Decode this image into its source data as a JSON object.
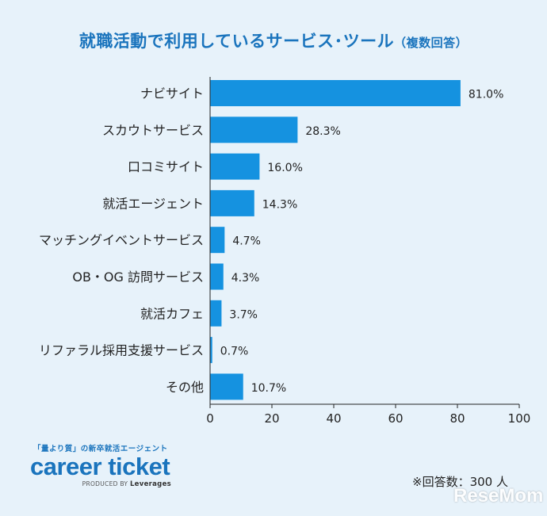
{
  "title": "就職活動で利用しているサービス･ツール",
  "title_sub": "（複数回答）",
  "note": "※回答数：300 人",
  "logo": {
    "tagline": "「量より質」の新卒就活エージェント",
    "brand": "career ticket",
    "produced_prefix": "PRODUCED BY",
    "produced_by": "Leverages"
  },
  "watermark": "ReseMom",
  "colors": {
    "bar": "#1592e0",
    "title": "#1a74bd",
    "background": "#e7f2fa"
  },
  "chart_data": {
    "type": "bar",
    "orientation": "horizontal",
    "categories": [
      "ナビサイト",
      "スカウトサービス",
      "口コミサイト",
      "就活エージェント",
      "マッチングイベントサービス",
      "OB・OG 訪問サービス",
      "就活カフェ",
      "リファラル採用支援サービス",
      "その他"
    ],
    "values": [
      81.0,
      28.3,
      16.0,
      14.3,
      4.7,
      4.3,
      3.7,
      0.7,
      10.7
    ],
    "value_labels": [
      "81.0%",
      "28.3%",
      "16.0%",
      "14.3%",
      "4.7%",
      "4.3%",
      "3.7%",
      "0.7%",
      "10.7%"
    ],
    "xlim": [
      0,
      100
    ],
    "xticks": [
      0,
      20,
      40,
      60,
      80,
      100
    ],
    "grid": false,
    "legend": "none"
  }
}
